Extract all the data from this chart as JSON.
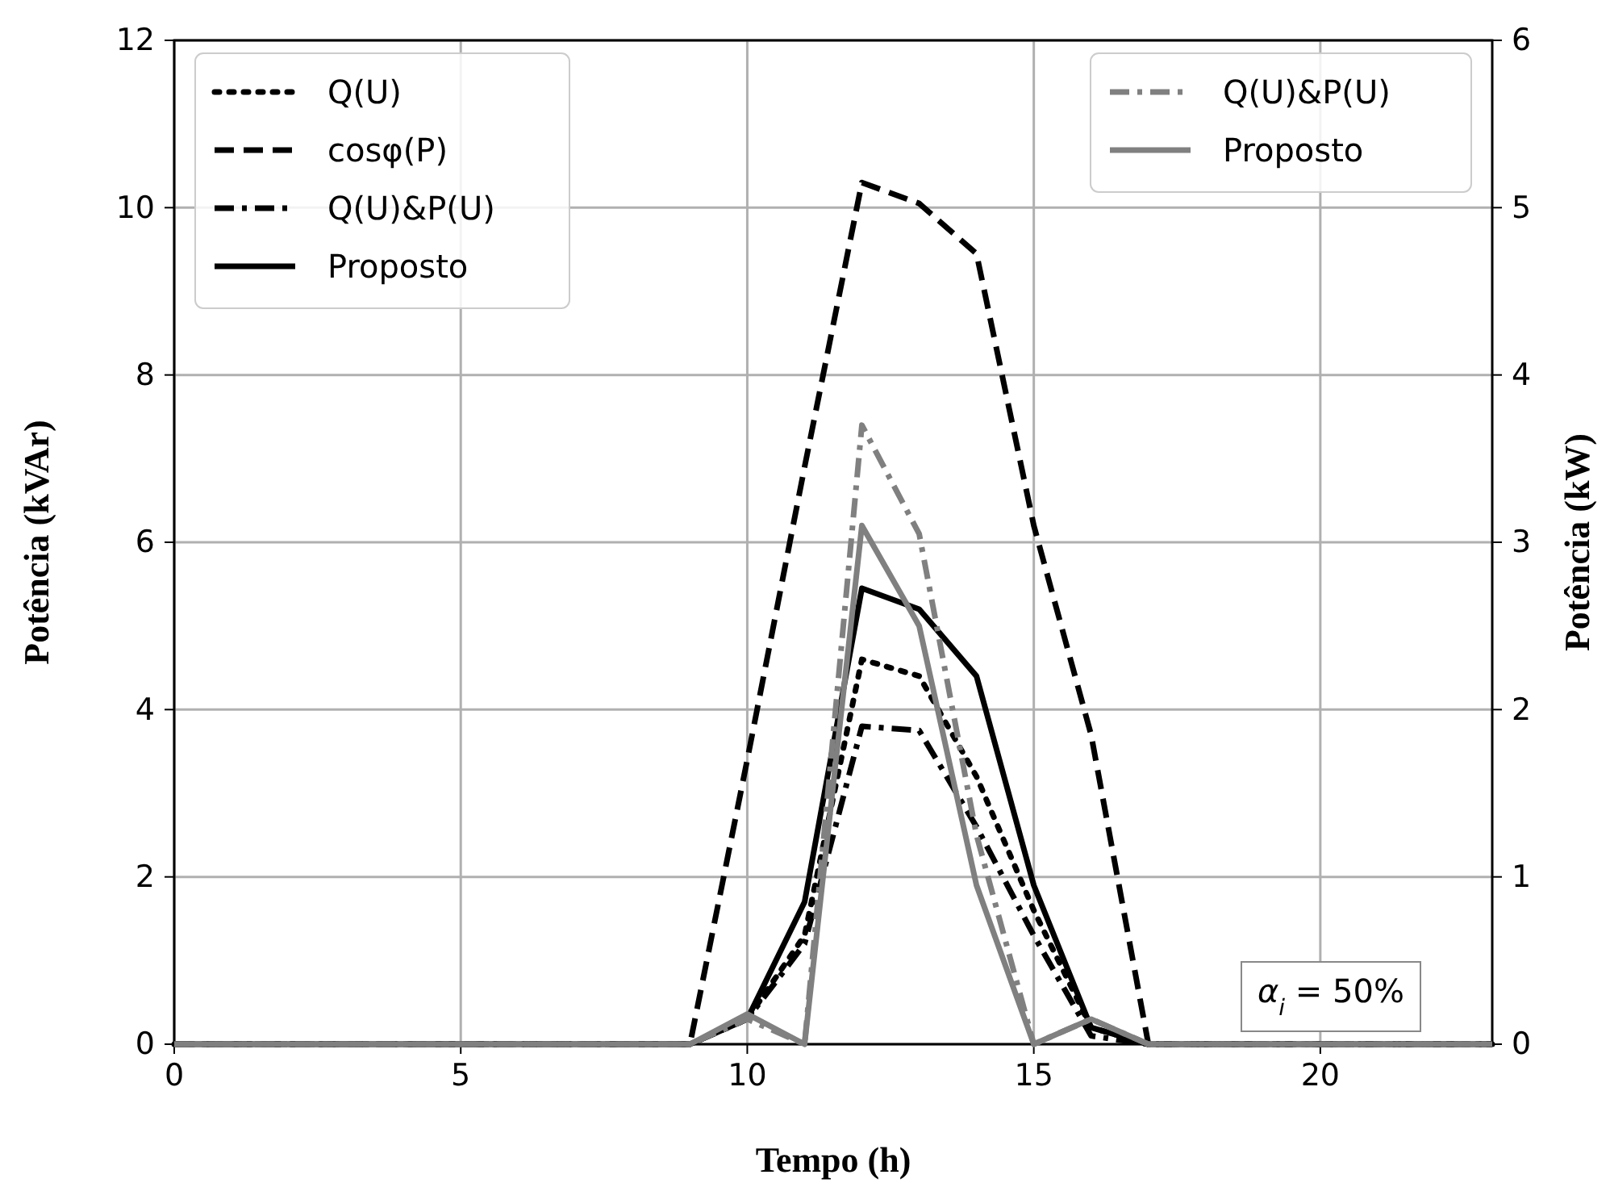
{
  "chart_data": {
    "type": "line",
    "xlabel": "Tempo (h)",
    "ylabel": "Potência (kVAr)",
    "y2label": "Potência (kW)",
    "x": [
      0,
      1,
      2,
      3,
      4,
      5,
      6,
      7,
      8,
      9,
      10,
      11,
      12,
      13,
      14,
      15,
      16,
      17,
      18,
      19,
      20,
      21,
      22,
      23
    ],
    "xlim": [
      0,
      23
    ],
    "xticks": [
      0,
      5,
      10,
      15,
      20
    ],
    "ylim": [
      0,
      12
    ],
    "yticks": [
      0,
      2,
      4,
      6,
      8,
      10,
      12
    ],
    "y2lim": [
      0,
      6
    ],
    "y2ticks": [
      0,
      1,
      2,
      3,
      4,
      5,
      6
    ],
    "grid": true,
    "legend": "top",
    "annotations": [
      "α$_{i}$ = 50%"
    ],
    "series": [
      {
        "name": "Q(U)",
        "color": "#000000",
        "line_style": "dotted",
        "values": [
          0,
          0,
          0,
          0,
          0,
          0,
          0,
          0,
          0,
          0,
          0.3,
          1.3,
          4.6,
          4.4,
          3.2,
          1.6,
          0.2,
          0,
          0,
          0,
          0,
          0,
          0,
          0
        ]
      },
      {
        "name": "cosφ(P)",
        "color": "#000000",
        "line_style": "dashed",
        "values": [
          0,
          0,
          0,
          0,
          0,
          0,
          0,
          0,
          0,
          0,
          3.4,
          6.9,
          10.3,
          10.05,
          9.45,
          6.2,
          3.7,
          0,
          0,
          0,
          0,
          0,
          0,
          0
        ]
      },
      {
        "name": "Q(U)&P(U)",
        "color": "#000000",
        "line_style": "dashdot",
        "values": [
          0,
          0,
          0,
          0,
          0,
          0,
          0,
          0,
          0,
          0,
          0.3,
          1.2,
          3.8,
          3.75,
          2.6,
          1.3,
          0.1,
          0,
          0,
          0,
          0,
          0,
          0,
          0
        ]
      },
      {
        "name": "Proposto",
        "color": "#000000",
        "line_style": "solid",
        "values": [
          0,
          0,
          0,
          0,
          0,
          0,
          0,
          0,
          0,
          0,
          0.3,
          1.7,
          5.45,
          5.2,
          4.4,
          1.9,
          0.2,
          0,
          0,
          0,
          0,
          0,
          0,
          0
        ]
      },
      {
        "name": "Q(U)&P(U)",
        "color": "#808080",
        "line_style": "dashdot",
        "axis": "y2",
        "values": [
          0,
          0,
          0,
          0,
          0,
          0,
          0,
          0,
          0,
          0,
          0.15,
          0,
          3.7,
          3.05,
          1.25,
          0,
          0.15,
          0,
          0,
          0,
          0,
          0,
          0,
          0
        ]
      },
      {
        "name": "Proposto",
        "color": "#808080",
        "line_style": "solid",
        "axis": "y2",
        "values": [
          0,
          0,
          0,
          0,
          0,
          0,
          0,
          0,
          0,
          0,
          0.18,
          0,
          3.1,
          2.5,
          0.95,
          0,
          0.15,
          0,
          0,
          0,
          0,
          0,
          0,
          0
        ]
      }
    ]
  }
}
